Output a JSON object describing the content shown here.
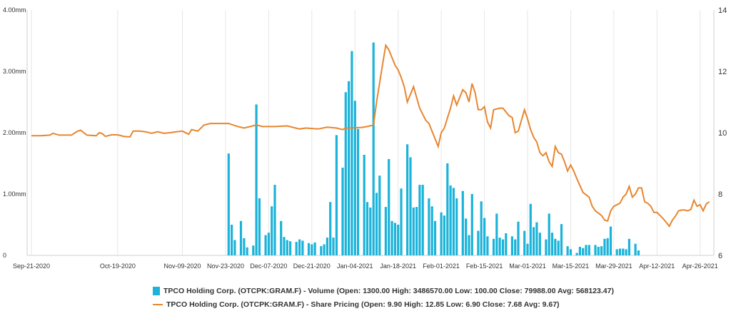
{
  "chart_data": {
    "type": "bar+line",
    "y_left": {
      "ticks": [
        "0",
        "1.00mm",
        "2.00mm",
        "3.00mm",
        "4.00mm"
      ],
      "tick_values": [
        0,
        1000000,
        2000000,
        3000000,
        4000000
      ],
      "range": [
        0,
        4000000
      ]
    },
    "y_right": {
      "ticks": [
        "6",
        "8",
        "10",
        "12",
        "14"
      ],
      "tick_values": [
        6,
        8,
        10,
        12,
        14
      ],
      "range": [
        6,
        14
      ]
    },
    "x_ticks": [
      "Sep-21-2020",
      "Oct-19-2020",
      "Nov-09-2020",
      "Nov-23-2020",
      "Dec-07-2020",
      "Dec-21-2020",
      "Jan-04-2021",
      "Jan-18-2021",
      "Feb-01-2021",
      "Feb-15-2021",
      "Mar-01-2021",
      "Mar-15-2021",
      "Mar-29-2021",
      "Apr-12-2021",
      "Apr-26-2021"
    ],
    "x_tick_days": [
      0,
      28,
      49,
      63,
      77,
      91,
      105,
      119,
      133,
      147,
      161,
      175,
      189,
      203,
      217
    ],
    "x_range_days": [
      0,
      221
    ],
    "grid": "vertical",
    "legend_position": "bottom-center",
    "series": [
      {
        "name": "TPCO Holding Corp. (OTCPK:GRAM.F) - Volume (Open: 1300.00 High: 3486570.00 Low: 100.00 Close: 79988.00 Avg: 568123.47)",
        "kind": "bar",
        "axis": "left",
        "color": "#1bb3d9",
        "points": [
          [
            64,
            1660000
          ],
          [
            65,
            500000
          ],
          [
            66,
            250000
          ],
          [
            68,
            560000
          ],
          [
            69,
            280000
          ],
          [
            70,
            130000
          ],
          [
            72,
            160000
          ],
          [
            73,
            2460000
          ],
          [
            74,
            930000
          ],
          [
            76,
            330000
          ],
          [
            77,
            370000
          ],
          [
            78,
            800000
          ],
          [
            79,
            1150000
          ],
          [
            81,
            560000
          ],
          [
            82,
            300000
          ],
          [
            83,
            250000
          ],
          [
            84,
            230000
          ],
          [
            86,
            220000
          ],
          [
            87,
            260000
          ],
          [
            88,
            240000
          ],
          [
            90,
            200000
          ],
          [
            91,
            180000
          ],
          [
            92,
            210000
          ],
          [
            94,
            150000
          ],
          [
            95,
            180000
          ],
          [
            96,
            290000
          ],
          [
            97,
            870000
          ],
          [
            98,
            290000
          ],
          [
            99,
            1960000
          ],
          [
            101,
            1430000
          ],
          [
            102,
            2660000
          ],
          [
            103,
            2840000
          ],
          [
            104,
            3330000
          ],
          [
            105,
            2520000
          ],
          [
            106,
            2060000
          ],
          [
            108,
            1640000
          ],
          [
            109,
            870000
          ],
          [
            110,
            780000
          ],
          [
            111,
            3470000
          ],
          [
            112,
            1020000
          ],
          [
            113,
            1300000
          ],
          [
            115,
            790000
          ],
          [
            116,
            1570000
          ],
          [
            117,
            560000
          ],
          [
            118,
            530000
          ],
          [
            119,
            500000
          ],
          [
            120,
            1090000
          ],
          [
            122,
            1810000
          ],
          [
            123,
            1600000
          ],
          [
            124,
            780000
          ],
          [
            125,
            790000
          ],
          [
            126,
            1150000
          ],
          [
            127,
            1150000
          ],
          [
            129,
            930000
          ],
          [
            130,
            800000
          ],
          [
            131,
            560000
          ],
          [
            133,
            700000
          ],
          [
            134,
            650000
          ],
          [
            135,
            1500000
          ],
          [
            136,
            1140000
          ],
          [
            137,
            1100000
          ],
          [
            138,
            930000
          ],
          [
            140,
            1050000
          ],
          [
            141,
            600000
          ],
          [
            142,
            330000
          ],
          [
            143,
            1000000
          ],
          [
            145,
            400000
          ],
          [
            146,
            880000
          ],
          [
            147,
            610000
          ],
          [
            148,
            310000
          ],
          [
            150,
            270000
          ],
          [
            151,
            680000
          ],
          [
            152,
            290000
          ],
          [
            153,
            260000
          ],
          [
            154,
            360000
          ],
          [
            156,
            310000
          ],
          [
            157,
            260000
          ],
          [
            158,
            550000
          ],
          [
            160,
            400000
          ],
          [
            161,
            190000
          ],
          [
            162,
            840000
          ],
          [
            163,
            460000
          ],
          [
            164,
            540000
          ],
          [
            165,
            370000
          ],
          [
            167,
            260000
          ],
          [
            168,
            680000
          ],
          [
            169,
            370000
          ],
          [
            170,
            270000
          ],
          [
            171,
            240000
          ],
          [
            172,
            510000
          ],
          [
            174,
            150000
          ],
          [
            175,
            100000
          ],
          [
            177,
            40000
          ],
          [
            178,
            140000
          ],
          [
            179,
            120000
          ],
          [
            180,
            170000
          ],
          [
            181,
            170000
          ],
          [
            183,
            170000
          ],
          [
            184,
            140000
          ],
          [
            185,
            150000
          ],
          [
            186,
            270000
          ],
          [
            187,
            280000
          ],
          [
            188,
            470000
          ],
          [
            190,
            100000
          ],
          [
            191,
            110000
          ],
          [
            192,
            110000
          ],
          [
            193,
            100000
          ],
          [
            194,
            270000
          ],
          [
            196,
            190000
          ],
          [
            197,
            80000
          ]
        ]
      },
      {
        "name": "TPCO Holding Corp. (OTCPK:GRAM.F) - Share Pricing (Open: 9.90 High: 12.85 Low: 6.90 Close: 7.68 Avg: 9.67)",
        "kind": "line",
        "axis": "right",
        "color": "#e8862f",
        "points": [
          [
            0,
            9.9
          ],
          [
            3,
            9.9
          ],
          [
            6,
            9.92
          ],
          [
            7,
            9.98
          ],
          [
            9,
            9.92
          ],
          [
            13,
            9.92
          ],
          [
            15,
            10.05
          ],
          [
            16,
            10.08
          ],
          [
            18,
            9.92
          ],
          [
            21,
            9.9
          ],
          [
            22,
            10.0
          ],
          [
            23,
            9.97
          ],
          [
            24,
            9.88
          ],
          [
            26,
            9.93
          ],
          [
            28,
            9.93
          ],
          [
            30,
            9.88
          ],
          [
            32,
            9.86
          ],
          [
            33,
            10.05
          ],
          [
            35,
            10.05
          ],
          [
            37,
            10.03
          ],
          [
            39,
            9.98
          ],
          [
            41,
            10.03
          ],
          [
            43,
            9.98
          ],
          [
            45,
            10.0
          ],
          [
            47,
            10.03
          ],
          [
            49,
            10.05
          ],
          [
            51,
            9.95
          ],
          [
            52,
            10.1
          ],
          [
            54,
            10.05
          ],
          [
            56,
            10.25
          ],
          [
            58,
            10.3
          ],
          [
            62,
            10.3
          ],
          [
            64,
            10.3
          ],
          [
            67,
            10.2
          ],
          [
            69,
            10.15
          ],
          [
            71,
            10.2
          ],
          [
            73,
            10.25
          ],
          [
            75,
            10.2
          ],
          [
            79,
            10.2
          ],
          [
            83,
            10.22
          ],
          [
            87,
            10.12
          ],
          [
            89,
            10.15
          ],
          [
            93,
            10.12
          ],
          [
            96,
            10.18
          ],
          [
            99,
            10.15
          ],
          [
            101,
            10.1
          ],
          [
            102,
            10.15
          ],
          [
            107,
            10.17
          ],
          [
            109,
            10.2
          ],
          [
            111,
            10.25
          ],
          [
            112,
            11.0
          ],
          [
            114,
            12.25
          ],
          [
            115,
            12.85
          ],
          [
            116,
            12.7
          ],
          [
            118,
            12.2
          ],
          [
            119,
            12.05
          ],
          [
            120,
            11.8
          ],
          [
            121,
            11.5
          ],
          [
            122,
            11.0
          ],
          [
            124,
            11.5
          ],
          [
            126,
            10.8
          ],
          [
            128,
            10.4
          ],
          [
            129,
            10.3
          ],
          [
            131,
            9.8
          ],
          [
            132,
            9.55
          ],
          [
            133,
            10.0
          ],
          [
            134,
            10.15
          ],
          [
            136,
            10.8
          ],
          [
            137,
            11.2
          ],
          [
            138,
            10.9
          ],
          [
            140,
            11.4
          ],
          [
            141,
            11.3
          ],
          [
            142,
            11.0
          ],
          [
            143,
            11.6
          ],
          [
            144,
            11.3
          ],
          [
            145,
            10.75
          ],
          [
            146,
            10.75
          ],
          [
            147,
            10.85
          ],
          [
            148,
            10.35
          ],
          [
            149,
            10.15
          ],
          [
            150,
            10.75
          ],
          [
            152,
            10.8
          ],
          [
            153,
            10.8
          ],
          [
            155,
            10.55
          ],
          [
            156,
            10.5
          ],
          [
            157,
            10.0
          ],
          [
            158,
            10.05
          ],
          [
            160,
            10.75
          ],
          [
            161,
            10.45
          ],
          [
            162,
            10.1
          ],
          [
            163,
            9.85
          ],
          [
            164,
            9.7
          ],
          [
            165,
            9.35
          ],
          [
            166,
            9.25
          ],
          [
            167,
            9.35
          ],
          [
            168,
            9.05
          ],
          [
            169,
            8.9
          ],
          [
            170,
            9.55
          ],
          [
            171,
            9.35
          ],
          [
            172,
            9.3
          ],
          [
            173,
            9.05
          ],
          [
            174,
            8.75
          ],
          [
            175,
            8.95
          ],
          [
            176,
            8.75
          ],
          [
            177,
            8.5
          ],
          [
            179,
            8.05
          ],
          [
            181,
            7.9
          ],
          [
            182,
            7.6
          ],
          [
            183,
            7.45
          ],
          [
            185,
            7.3
          ],
          [
            186,
            7.15
          ],
          [
            187,
            7.12
          ],
          [
            188,
            7.45
          ],
          [
            189,
            7.6
          ],
          [
            191,
            7.7
          ],
          [
            192,
            7.9
          ],
          [
            193,
            8.0
          ],
          [
            194,
            8.25
          ],
          [
            195,
            7.9
          ],
          [
            196,
            8.0
          ],
          [
            197,
            8.2
          ],
          [
            198,
            8.2
          ],
          [
            199,
            7.75
          ],
          [
            200,
            7.7
          ],
          [
            201,
            7.6
          ],
          [
            202,
            7.4
          ],
          [
            203,
            7.4
          ],
          [
            204,
            7.3
          ],
          [
            205,
            7.2
          ],
          [
            206,
            7.08
          ],
          [
            207,
            6.95
          ],
          [
            208,
            7.15
          ],
          [
            209,
            7.28
          ],
          [
            210,
            7.45
          ],
          [
            211,
            7.48
          ],
          [
            212,
            7.48
          ],
          [
            213,
            7.45
          ],
          [
            214,
            7.5
          ],
          [
            215,
            7.8
          ],
          [
            216,
            7.6
          ],
          [
            217,
            7.65
          ],
          [
            218,
            7.45
          ],
          [
            219,
            7.68
          ],
          [
            220,
            7.75
          ]
        ]
      }
    ]
  }
}
